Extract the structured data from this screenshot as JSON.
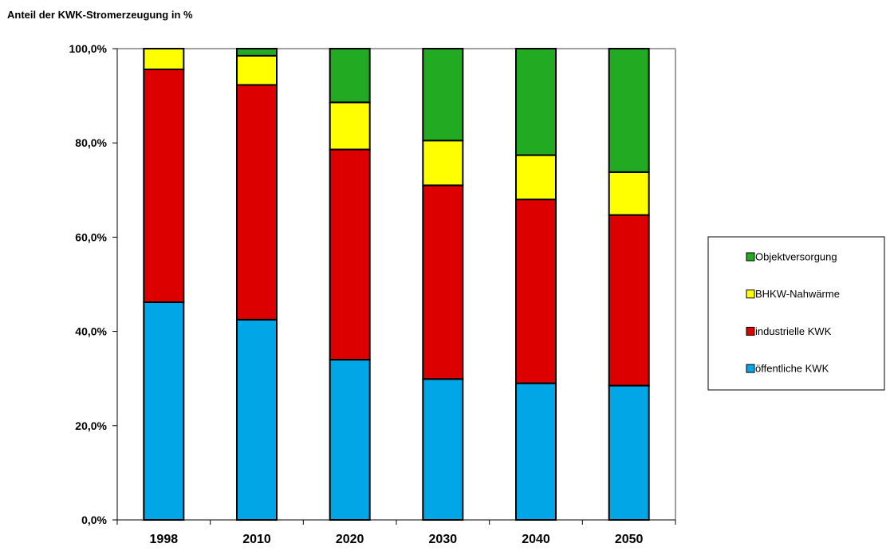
{
  "chart_data": {
    "type": "bar",
    "stacked": true,
    "title": "Anteil der KWK-Stromerzeugung in %",
    "xlabel": "",
    "ylabel": "",
    "categories": [
      "1998",
      "2010",
      "2020",
      "2030",
      "2040",
      "2050"
    ],
    "ylim": [
      0,
      100
    ],
    "yticks": [
      0,
      20,
      40,
      60,
      80,
      100
    ],
    "ytick_labels": [
      "0,0%",
      "20,0%",
      "40,0%",
      "60,0%",
      "80,0%",
      "100,0%"
    ],
    "grid": false,
    "legend_position": "right",
    "series": [
      {
        "name": "öffentliche KWK",
        "color": "#00a6e6",
        "values": [
          46.2,
          42.5,
          34.0,
          29.9,
          29.0,
          28.5
        ]
      },
      {
        "name": "industrielle KWK",
        "color": "#dd0000",
        "values": [
          49.4,
          49.8,
          44.6,
          41.1,
          39.0,
          36.2
        ]
      },
      {
        "name": "BHKW-Nahwärme",
        "color": "#ffff00",
        "values": [
          4.4,
          6.2,
          10.0,
          9.5,
          9.4,
          9.1
        ]
      },
      {
        "name": "Objektversorgung",
        "color": "#22aa22",
        "values": [
          0.0,
          1.5,
          11.4,
          19.5,
          22.6,
          26.2
        ]
      }
    ],
    "legend_order": [
      "Objektversorgung",
      "BHKW-Nahwärme",
      "industrielle KWK",
      "öffentliche KWK"
    ]
  }
}
